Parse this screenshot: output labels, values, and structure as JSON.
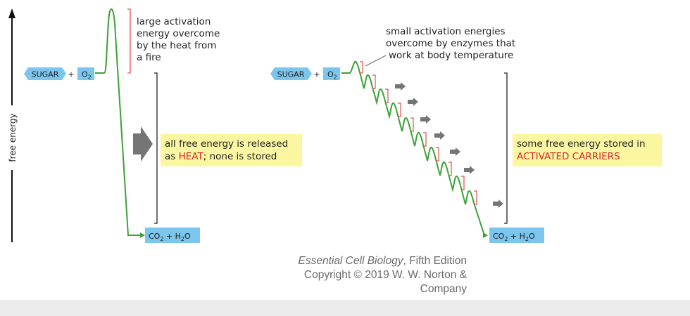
{
  "axis": {
    "label": "free energy"
  },
  "reactants": {
    "sugar": "SUGAR",
    "plus": "+",
    "o2": "O",
    "o2_sub": "2"
  },
  "products": {
    "co": "CO",
    "co_sub": "2",
    "plus": " + H",
    "h2o_sub": "2",
    "o": "O"
  },
  "left": {
    "note_lines": [
      "large activation",
      "energy overcome",
      "by the heat from",
      "a fire"
    ],
    "result_lines": {
      "line1": "all free energy is released",
      "line2_pre": "as ",
      "line2_highlight": "HEAT",
      "line2_post": "; none is stored"
    }
  },
  "right": {
    "note_lines": [
      "small activation energies",
      "overcome by enzymes that",
      "work at body temperature"
    ],
    "result_lines": {
      "line1": "some free energy stored in",
      "line2_highlight": "ACTIVATED CARRIERS"
    }
  },
  "caption": {
    "book": "Essential Cell Biology",
    "edition": ", Fifth Edition",
    "copyright_lines": [
      "Copyright © 2019 W. W. Norton &",
      "Company"
    ]
  },
  "colors": {
    "curve": "#3aa335",
    "box_blue": "#7cc6ee",
    "note_yellow": "#fbf6a0",
    "bracket_red": "#e05050",
    "arrow_gray": "#707070",
    "highlight_red": "#d42a2a"
  }
}
